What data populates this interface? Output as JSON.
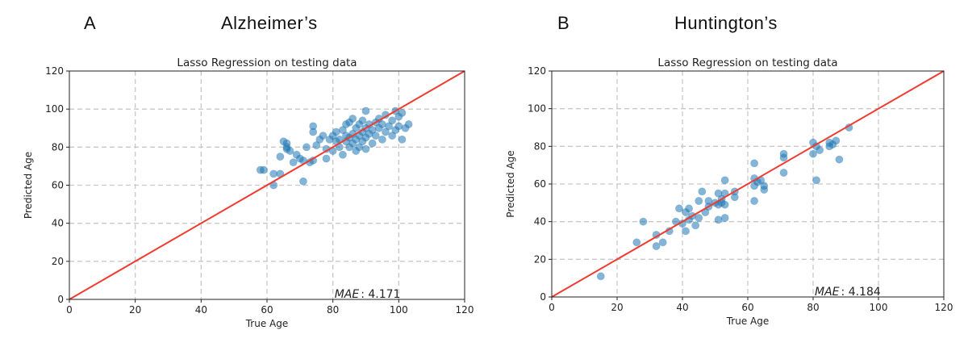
{
  "panels": [
    {
      "letter": "A",
      "heading": "Alzheimer’s"
    },
    {
      "letter": "B",
      "heading": "Huntington’s"
    }
  ],
  "colors": {
    "points": "#1f77b4",
    "fit_line": "#f03b2e",
    "grid": "#c8c8c8"
  },
  "chart_data": [
    {
      "type": "scatter",
      "title": "Lasso Regression on testing data",
      "xlabel": "True Age",
      "ylabel": "Predicted Age",
      "xlim": [
        0,
        120
      ],
      "ylim": [
        0,
        120
      ],
      "xticks": [
        0,
        20,
        40,
        60,
        80,
        100,
        120
      ],
      "yticks": [
        0,
        20,
        40,
        60,
        80,
        100,
        120
      ],
      "grid": true,
      "grid_style": "dashed",
      "identity_line": [
        [
          0,
          0
        ],
        [
          120,
          120
        ]
      ],
      "annotation": {
        "label": "MAE",
        "value": ": 4.171"
      },
      "points": [
        [
          58,
          68
        ],
        [
          59,
          68
        ],
        [
          62,
          60
        ],
        [
          62,
          66
        ],
        [
          64,
          66
        ],
        [
          64,
          75
        ],
        [
          65,
          83
        ],
        [
          66,
          82
        ],
        [
          66,
          79
        ],
        [
          66,
          80
        ],
        [
          67,
          78
        ],
        [
          68,
          72
        ],
        [
          69,
          76
        ],
        [
          70,
          74
        ],
        [
          71,
          62
        ],
        [
          71,
          73
        ],
        [
          72,
          80
        ],
        [
          73,
          72
        ],
        [
          74,
          91
        ],
        [
          74,
          88
        ],
        [
          74,
          73
        ],
        [
          75,
          81
        ],
        [
          76,
          84
        ],
        [
          77,
          86
        ],
        [
          78,
          79
        ],
        [
          78,
          74
        ],
        [
          79,
          84
        ],
        [
          80,
          78
        ],
        [
          80,
          86
        ],
        [
          81,
          83
        ],
        [
          81,
          88
        ],
        [
          82,
          84
        ],
        [
          82,
          80
        ],
        [
          83,
          89
        ],
        [
          83,
          76
        ],
        [
          84,
          83
        ],
        [
          84,
          92
        ],
        [
          84,
          86
        ],
        [
          85,
          93
        ],
        [
          85,
          80
        ],
        [
          85,
          85
        ],
        [
          86,
          95
        ],
        [
          86,
          87
        ],
        [
          86,
          82
        ],
        [
          87,
          90
        ],
        [
          87,
          78
        ],
        [
          87,
          84
        ],
        [
          88,
          92
        ],
        [
          88,
          86
        ],
        [
          88,
          80
        ],
        [
          89,
          94
        ],
        [
          89,
          88
        ],
        [
          89,
          83
        ],
        [
          90,
          90
        ],
        [
          90,
          99
        ],
        [
          90,
          85
        ],
        [
          90,
          79
        ],
        [
          91,
          92
        ],
        [
          91,
          87
        ],
        [
          92,
          82
        ],
        [
          92,
          89
        ],
        [
          93,
          93
        ],
        [
          93,
          86
        ],
        [
          94,
          95
        ],
        [
          94,
          90
        ],
        [
          95,
          84
        ],
        [
          95,
          92
        ],
        [
          96,
          97
        ],
        [
          96,
          88
        ],
        [
          97,
          91
        ],
        [
          98,
          94
        ],
        [
          98,
          86
        ],
        [
          99,
          99
        ],
        [
          99,
          89
        ],
        [
          100,
          96
        ],
        [
          100,
          91
        ],
        [
          101,
          84
        ],
        [
          101,
          98
        ],
        [
          102,
          90
        ],
        [
          103,
          92
        ]
      ]
    },
    {
      "type": "scatter",
      "title": "Lasso Regression on testing data",
      "xlabel": "True Age",
      "ylabel": "Predicted Age",
      "xlim": [
        0,
        120
      ],
      "ylim": [
        0,
        120
      ],
      "xticks": [
        0,
        20,
        40,
        60,
        80,
        100,
        120
      ],
      "yticks": [
        0,
        20,
        40,
        60,
        80,
        100,
        120
      ],
      "grid": true,
      "grid_style": "dashed",
      "identity_line": [
        [
          0,
          0
        ],
        [
          120,
          120
        ]
      ],
      "annotation": {
        "label": "MAE",
        "value": ": 4.184"
      },
      "points": [
        [
          15,
          11
        ],
        [
          26,
          29
        ],
        [
          28,
          40
        ],
        [
          32,
          27
        ],
        [
          32,
          33
        ],
        [
          34,
          29
        ],
        [
          36,
          35
        ],
        [
          38,
          40
        ],
        [
          39,
          47
        ],
        [
          40,
          39
        ],
        [
          41,
          35
        ],
        [
          41,
          45
        ],
        [
          42,
          41
        ],
        [
          42,
          47
        ],
        [
          43,
          43
        ],
        [
          44,
          38
        ],
        [
          45,
          42
        ],
        [
          45,
          51
        ],
        [
          46,
          56
        ],
        [
          47,
          45
        ],
        [
          48,
          51
        ],
        [
          48,
          48
        ],
        [
          50,
          50
        ],
        [
          51,
          41
        ],
        [
          51,
          55
        ],
        [
          51,
          49
        ],
        [
          52,
          52
        ],
        [
          52,
          50
        ],
        [
          53,
          42
        ],
        [
          53,
          55
        ],
        [
          53,
          62
        ],
        [
          53,
          49
        ],
        [
          56,
          53
        ],
        [
          56,
          56
        ],
        [
          62,
          51
        ],
        [
          62,
          59
        ],
        [
          62,
          63
        ],
        [
          62,
          71
        ],
        [
          63,
          61
        ],
        [
          64,
          62
        ],
        [
          65,
          59
        ],
        [
          65,
          57
        ],
        [
          71,
          66
        ],
        [
          71,
          74
        ],
        [
          71,
          76
        ],
        [
          80,
          76
        ],
        [
          80,
          82
        ],
        [
          81,
          80
        ],
        [
          81,
          62
        ],
        [
          82,
          78
        ],
        [
          85,
          80
        ],
        [
          85,
          82
        ],
        [
          86,
          81
        ],
        [
          87,
          83
        ],
        [
          88,
          73
        ],
        [
          91,
          90
        ]
      ]
    }
  ]
}
